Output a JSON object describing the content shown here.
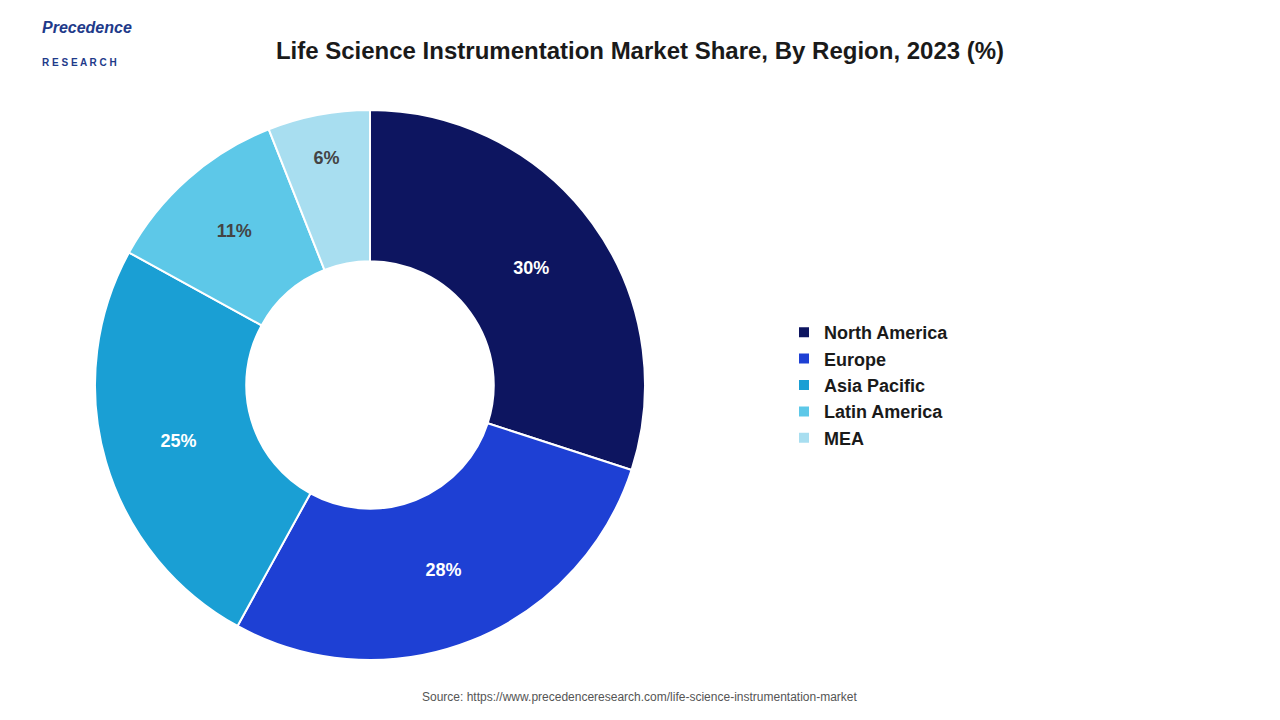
{
  "chart_data": {
    "type": "pie",
    "title": "Life Science Instrumentation Market Share, By Region, 2023 (%)",
    "categories": [
      "North America",
      "Europe",
      "Asia Pacific",
      "Latin America",
      "MEA"
    ],
    "values": [
      30,
      28,
      25,
      11,
      6
    ],
    "value_labels": [
      "30%",
      "28%",
      "25%",
      "11%",
      "6%"
    ],
    "colors": [
      "#0d1560",
      "#1e40d4",
      "#1a9fd4",
      "#5dc8e8",
      "#a8def0"
    ],
    "data_labels": true,
    "legend": "right",
    "annotations": [
      "Precedence",
      "R E S E A R C H",
      "Source: https://www.precedenceresearch.com/life-science-instrumentation-market"
    ]
  }
}
